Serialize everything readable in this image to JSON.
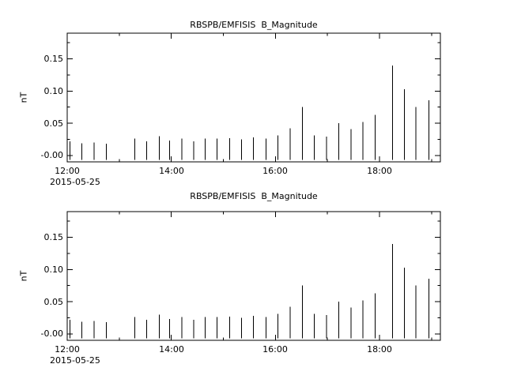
{
  "page": {
    "background": "#ffffff",
    "foreground": "#000000"
  },
  "chart_data": [
    {
      "type": "bar",
      "title": "RBSPB/EMFISIS  B_Magnitude",
      "ylabel": "nT",
      "xlabel_date": "2015-05-25",
      "ylim": [
        -0.01,
        0.19
      ],
      "xlim_hours": [
        12.0,
        19.17
      ],
      "ytick_values": [
        0.0,
        0.05,
        0.1,
        0.15
      ],
      "ytick_labels": [
        "-0.00",
        "0.05",
        "0.10",
        "0.15"
      ],
      "xtick_hours": [
        12,
        14,
        16,
        18
      ],
      "xtick_labels": [
        "12:00",
        "14:00",
        "16:00",
        "18:00"
      ],
      "minor_xtick_hours": [
        13,
        15,
        17,
        19
      ],
      "bar_color": "#000000",
      "bar_bottom": -0.007,
      "points": [
        [
          12.05,
          0.022
        ],
        [
          12.28,
          0.019
        ],
        [
          12.52,
          0.02
        ],
        [
          12.75,
          0.018
        ],
        [
          13.3,
          0.026
        ],
        [
          13.53,
          0.022
        ],
        [
          13.77,
          0.03
        ],
        [
          13.97,
          0.023
        ],
        [
          14.2,
          0.026
        ],
        [
          14.43,
          0.022
        ],
        [
          14.65,
          0.026
        ],
        [
          14.88,
          0.026
        ],
        [
          15.12,
          0.027
        ],
        [
          15.35,
          0.025
        ],
        [
          15.58,
          0.028
        ],
        [
          15.82,
          0.026
        ],
        [
          16.05,
          0.031
        ],
        [
          16.28,
          0.042
        ],
        [
          16.52,
          0.075
        ],
        [
          16.75,
          0.031
        ],
        [
          16.98,
          0.029
        ],
        [
          17.22,
          0.05
        ],
        [
          17.45,
          0.041
        ],
        [
          17.68,
          0.052
        ],
        [
          17.92,
          0.063
        ],
        [
          18.25,
          0.14
        ],
        [
          18.48,
          0.103
        ],
        [
          18.7,
          0.075
        ],
        [
          18.95,
          0.086
        ]
      ]
    },
    {
      "type": "bar",
      "title": "RBSPB/EMFISIS  B_Magnitude",
      "ylabel": "nT",
      "xlabel_date": "2015-05-25",
      "ylim": [
        -0.01,
        0.19
      ],
      "xlim_hours": [
        12.0,
        19.17
      ],
      "ytick_values": [
        0.0,
        0.05,
        0.1,
        0.15
      ],
      "ytick_labels": [
        "-0.00",
        "0.05",
        "0.10",
        "0.15"
      ],
      "xtick_hours": [
        12,
        14,
        16,
        18
      ],
      "xtick_labels": [
        "12:00",
        "14:00",
        "16:00",
        "18:00"
      ],
      "minor_xtick_hours": [
        13,
        15,
        17,
        19
      ],
      "bar_color": "#000000",
      "bar_bottom": -0.007,
      "points": [
        [
          12.05,
          0.022
        ],
        [
          12.28,
          0.019
        ],
        [
          12.52,
          0.02
        ],
        [
          12.75,
          0.018
        ],
        [
          13.3,
          0.026
        ],
        [
          13.53,
          0.022
        ],
        [
          13.77,
          0.03
        ],
        [
          13.97,
          0.023
        ],
        [
          14.2,
          0.026
        ],
        [
          14.43,
          0.022
        ],
        [
          14.65,
          0.026
        ],
        [
          14.88,
          0.026
        ],
        [
          15.12,
          0.027
        ],
        [
          15.35,
          0.025
        ],
        [
          15.58,
          0.028
        ],
        [
          15.82,
          0.026
        ],
        [
          16.05,
          0.031
        ],
        [
          16.28,
          0.042
        ],
        [
          16.52,
          0.075
        ],
        [
          16.75,
          0.031
        ],
        [
          16.98,
          0.029
        ],
        [
          17.22,
          0.05
        ],
        [
          17.45,
          0.041
        ],
        [
          17.68,
          0.052
        ],
        [
          17.92,
          0.063
        ],
        [
          18.25,
          0.14
        ],
        [
          18.48,
          0.103
        ],
        [
          18.7,
          0.075
        ],
        [
          18.95,
          0.086
        ]
      ]
    }
  ]
}
